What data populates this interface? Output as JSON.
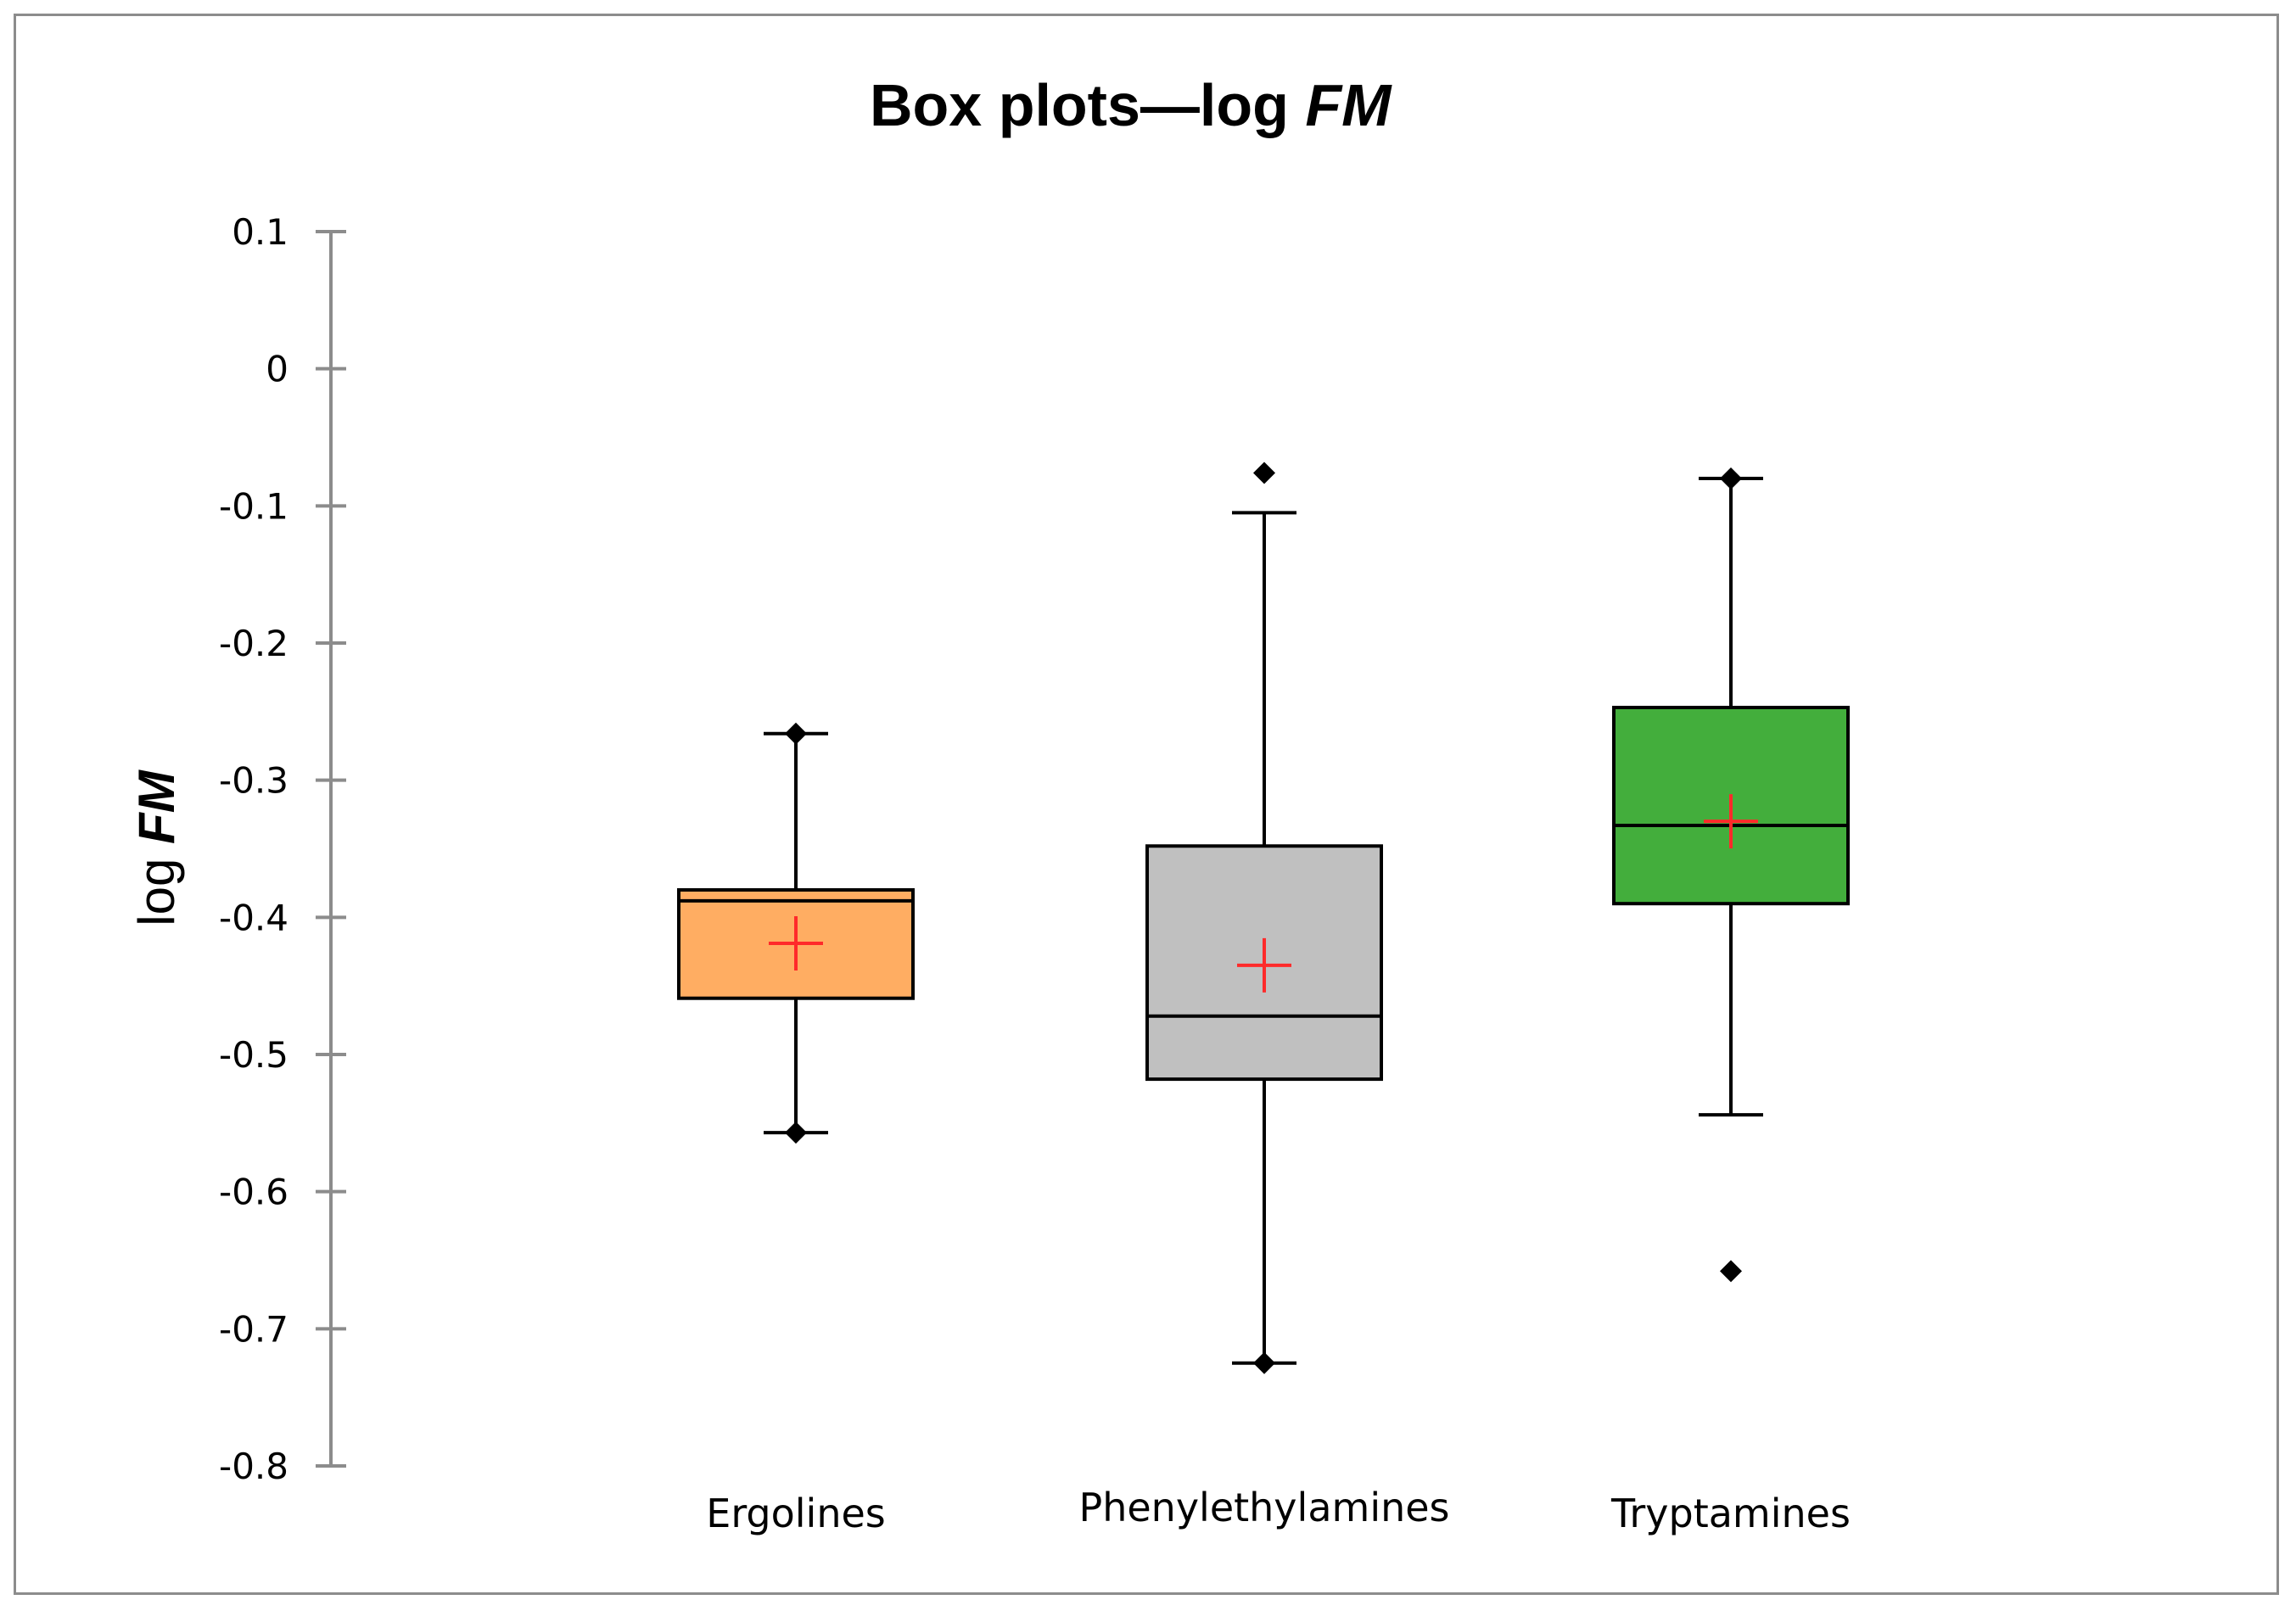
{
  "chart_data": {
    "type": "box",
    "title": "Box plots—log ",
    "title_italic": "FM",
    "ylabel": "log ",
    "ylabel_italic": "FM",
    "ylim": [
      -0.8,
      0.1
    ],
    "yticks": [
      0.1,
      0,
      -0.1,
      -0.2,
      -0.3,
      -0.4,
      -0.5,
      -0.6,
      -0.7,
      -0.8
    ],
    "ytick_labels": [
      "0.1",
      "0",
      "-0.1",
      "-0.2",
      "-0.3",
      "-0.4",
      "-0.5",
      "-0.6",
      "-0.7",
      "-0.8"
    ],
    "grid": false,
    "categories": [
      "Ergolines",
      "Phenylethylamines",
      "Tryptamines"
    ],
    "series": [
      {
        "category": "Ergolines",
        "color": "#FFAD62",
        "whisker_low": -0.557,
        "q1": -0.459,
        "median": -0.388,
        "q3": -0.38,
        "whisker_high": -0.266,
        "mean": -0.419,
        "points": [
          -0.266,
          -0.557
        ]
      },
      {
        "category": "Phenylethylamines",
        "color": "#C0C0C0",
        "whisker_low": -0.725,
        "q1": -0.518,
        "median": -0.472,
        "q3": -0.348,
        "whisker_high": -0.105,
        "mean": -0.435,
        "points": [
          -0.076,
          -0.725
        ]
      },
      {
        "category": "Tryptamines",
        "color": "#43AE3C",
        "whisker_low": -0.544,
        "q1": -0.39,
        "median": -0.333,
        "q3": -0.247,
        "whisker_high": -0.08,
        "mean": -0.33,
        "points": [
          -0.08,
          -0.658
        ]
      }
    ],
    "mean_marker_color": "#FF2A2A"
  }
}
